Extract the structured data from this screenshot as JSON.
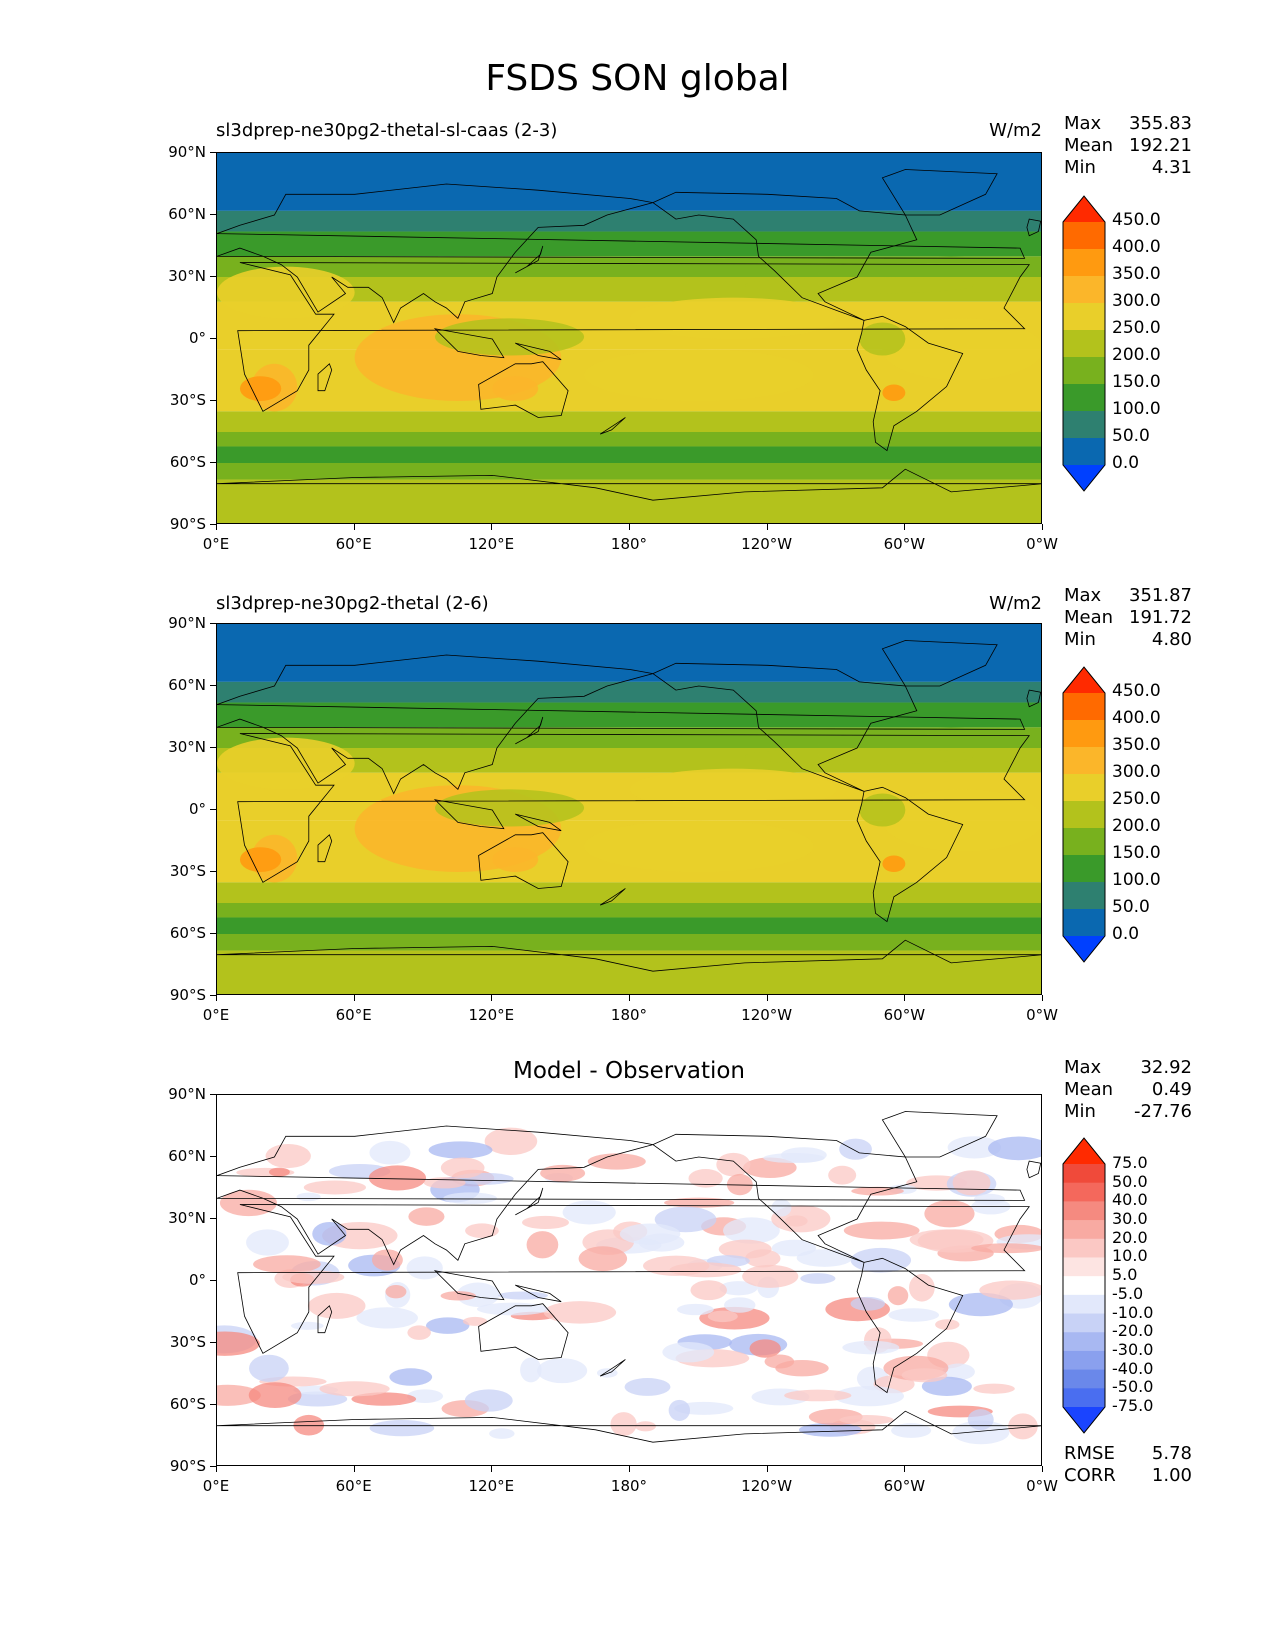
{
  "figure": {
    "title": "FSDS SON global"
  },
  "chart_data": [
    {
      "type": "heatmap",
      "title": "sl3dprep-ne30pg2-thetal-sl-caas (2-3)",
      "units": "W/m2",
      "stats": {
        "max_label": "Max",
        "max": "355.83",
        "mean_label": "Mean",
        "mean": "192.21",
        "min_label": "Min",
        "min": "4.31"
      },
      "colorbar": {
        "levels": [
          "450.0",
          "400.0",
          "350.0",
          "300.0",
          "250.0",
          "200.0",
          "150.0",
          "100.0",
          "50.0",
          "0.0"
        ],
        "colors": [
          "#ff2a00",
          "#ff6a00",
          "#ff9a10",
          "#fbb62a",
          "#e9cf2a",
          "#b3c21c",
          "#78b11e",
          "#3a9a2a",
          "#2e8070",
          "#0a68b0",
          "#0040ff"
        ]
      },
      "yticks": [
        "90°N",
        "60°N",
        "30°N",
        "0°",
        "30°S",
        "60°S",
        "90°S"
      ],
      "xticks": [
        "0°E",
        "60°E",
        "120°E",
        "180°",
        "120°W",
        "60°W",
        "0°W"
      ]
    },
    {
      "type": "heatmap",
      "title": "sl3dprep-ne30pg2-thetal (2-6)",
      "units": "W/m2",
      "stats": {
        "max_label": "Max",
        "max": "351.87",
        "mean_label": "Mean",
        "mean": "191.72",
        "min_label": "Min",
        "min": "4.80"
      },
      "colorbar": {
        "levels": [
          "450.0",
          "400.0",
          "350.0",
          "300.0",
          "250.0",
          "200.0",
          "150.0",
          "100.0",
          "50.0",
          "0.0"
        ],
        "colors": [
          "#ff2a00",
          "#ff6a00",
          "#ff9a10",
          "#fbb62a",
          "#e9cf2a",
          "#b3c21c",
          "#78b11e",
          "#3a9a2a",
          "#2e8070",
          "#0a68b0",
          "#0040ff"
        ]
      },
      "yticks": [
        "90°N",
        "60°N",
        "30°N",
        "0°",
        "30°S",
        "60°S",
        "90°S"
      ],
      "xticks": [
        "0°E",
        "60°E",
        "120°E",
        "180°",
        "120°W",
        "60°W",
        "0°W"
      ]
    },
    {
      "type": "heatmap",
      "title": "Model - Observation",
      "stats": {
        "max_label": "Max",
        "max": "32.92",
        "mean_label": "Mean",
        "mean": "0.49",
        "min_label": "Min",
        "min": "-27.76"
      },
      "colorbar": {
        "levels": [
          "75.0",
          "50.0",
          "40.0",
          "30.0",
          "20.0",
          "10.0",
          "5.0",
          "-5.0",
          "-10.0",
          "-20.0",
          "-30.0",
          "-40.0",
          "-50.0",
          "-75.0"
        ],
        "colors": [
          "#ff2a00",
          "#f04a3a",
          "#f4685c",
          "#f58a80",
          "#f8aaa2",
          "#fbc8c4",
          "#fde4e2",
          "#ffffff",
          "#e2e8fb",
          "#c8d2f6",
          "#a8b8f2",
          "#8aa0ee",
          "#6a88ea",
          "#4a6ef0",
          "#1a44ff"
        ]
      },
      "metrics": {
        "rmse_label": "RMSE",
        "rmse": "5.78",
        "corr_label": "CORR",
        "corr": "1.00"
      },
      "yticks": [
        "90°N",
        "60°N",
        "30°N",
        "0°",
        "30°S",
        "60°S",
        "90°S"
      ],
      "xticks": [
        "0°E",
        "60°E",
        "120°E",
        "180°",
        "120°W",
        "60°W",
        "0°W"
      ]
    }
  ]
}
